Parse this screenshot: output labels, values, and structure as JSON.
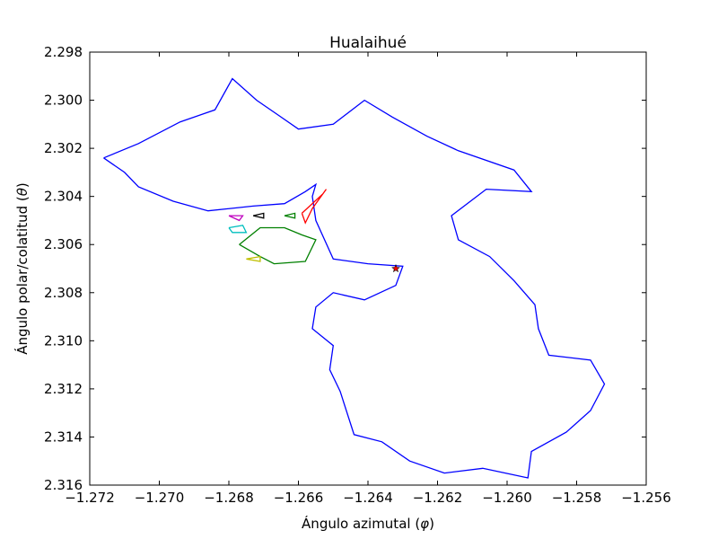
{
  "chart_data": {
    "type": "line",
    "title": "Hualaihué",
    "xlabel": "Ángulo azimutal (",
    "xlabel_symbol": "φ",
    "ylabel": "Ángulo polar/colatitud (",
    "ylabel_symbol": "θ",
    "xlim": [
      -1.272,
      -1.256
    ],
    "ylim": [
      2.298,
      2.316
    ],
    "y_inverted": true,
    "xticks": [
      -1.272,
      -1.27,
      -1.268,
      -1.266,
      -1.264,
      -1.262,
      -1.26,
      -1.258,
      -1.256
    ],
    "yticks": [
      2.298,
      2.3,
      2.302,
      2.304,
      2.306,
      2.308,
      2.31,
      2.312,
      2.314,
      2.316
    ],
    "xtick_labels": [
      "−1.272",
      "−1.270",
      "−1.268",
      "−1.266",
      "−1.264",
      "−1.262",
      "−1.260",
      "−1.258",
      "−1.256"
    ],
    "ytick_labels": [
      "2.298",
      "2.300",
      "2.302",
      "2.304",
      "2.306",
      "2.308",
      "2.310",
      "2.312",
      "2.314",
      "2.316"
    ],
    "grid": false,
    "legend": "none",
    "series": [
      {
        "color": "#0000ff",
        "closed": true,
        "points": [
          [
            -1.2716,
            2.3024
          ],
          [
            -1.2706,
            2.3018
          ],
          [
            -1.2694,
            2.3009
          ],
          [
            -1.2684,
            2.3004
          ],
          [
            -1.2679,
            2.2991
          ],
          [
            -1.2672,
            2.3
          ],
          [
            -1.2666,
            2.3006
          ],
          [
            -1.266,
            2.3012
          ],
          [
            -1.265,
            2.301
          ],
          [
            -1.2641,
            2.3
          ],
          [
            -1.2633,
            2.3007
          ],
          [
            -1.2623,
            2.3015
          ],
          [
            -1.2614,
            2.3021
          ],
          [
            -1.2598,
            2.3029
          ],
          [
            -1.2593,
            2.3038
          ],
          [
            -1.2606,
            2.3037
          ],
          [
            -1.2616,
            2.3048
          ],
          [
            -1.2614,
            2.3058
          ],
          [
            -1.2605,
            2.3065
          ],
          [
            -1.2598,
            2.3075
          ],
          [
            -1.2592,
            2.3085
          ],
          [
            -1.2591,
            2.3095
          ],
          [
            -1.2588,
            2.3106
          ],
          [
            -1.2576,
            2.3108
          ],
          [
            -1.2572,
            2.3118
          ],
          [
            -1.2576,
            2.3129
          ],
          [
            -1.2583,
            2.3138
          ],
          [
            -1.2593,
            2.3146
          ],
          [
            -1.2594,
            2.3157
          ],
          [
            -1.2607,
            2.3153
          ],
          [
            -1.2618,
            2.3155
          ],
          [
            -1.2628,
            2.315
          ],
          [
            -1.2636,
            2.3142
          ],
          [
            -1.2644,
            2.3139
          ],
          [
            -1.2648,
            2.3121
          ],
          [
            -1.2651,
            2.3112
          ],
          [
            -1.265,
            2.3102
          ],
          [
            -1.2656,
            2.3095
          ],
          [
            -1.2655,
            2.3086
          ],
          [
            -1.265,
            2.308
          ],
          [
            -1.2641,
            2.3083
          ],
          [
            -1.2632,
            2.3077
          ],
          [
            -1.263,
            2.3069
          ],
          [
            -1.264,
            2.3068
          ],
          [
            -1.265,
            2.3066
          ],
          [
            -1.2655,
            2.305
          ],
          [
            -1.2656,
            2.304
          ],
          [
            -1.2655,
            2.3035
          ],
          [
            -1.2658,
            2.3038
          ],
          [
            -1.2664,
            2.3043
          ],
          [
            -1.2673,
            2.3044
          ],
          [
            -1.2686,
            2.3046
          ],
          [
            -1.2696,
            2.3042
          ],
          [
            -1.2706,
            2.3036
          ],
          [
            -1.271,
            2.303
          ],
          [
            -1.2716,
            2.3024
          ]
        ]
      },
      {
        "color": "#ff0000",
        "closed": true,
        "points": [
          [
            -1.2659,
            2.3047
          ],
          [
            -1.2653,
            2.3039
          ],
          [
            -1.2652,
            2.3037
          ],
          [
            -1.2656,
            2.3045
          ],
          [
            -1.2658,
            2.3051
          ],
          [
            -1.2659,
            2.3047
          ]
        ]
      },
      {
        "color": "#008000",
        "closed": true,
        "points": [
          [
            -1.2677,
            2.306
          ],
          [
            -1.2671,
            2.3053
          ],
          [
            -1.2664,
            2.3053
          ],
          [
            -1.2659,
            2.3056
          ],
          [
            -1.2655,
            2.3058
          ],
          [
            -1.2658,
            2.3067
          ],
          [
            -1.2667,
            2.3068
          ],
          [
            -1.2671,
            2.3065
          ],
          [
            -1.2677,
            2.306
          ]
        ]
      },
      {
        "color": "#00bfbf",
        "closed": true,
        "points": [
          [
            -1.268,
            2.3053
          ],
          [
            -1.2676,
            2.3052
          ],
          [
            -1.2675,
            2.3055
          ],
          [
            -1.2679,
            2.3055
          ],
          [
            -1.268,
            2.3053
          ]
        ]
      },
      {
        "color": "#bf00bf",
        "closed": true,
        "points": [
          [
            -1.268,
            2.3048
          ],
          [
            -1.2676,
            2.3048
          ],
          [
            -1.2677,
            2.305
          ],
          [
            -1.268,
            2.3048
          ]
        ]
      },
      {
        "color": "#bfbf00",
        "closed": true,
        "points": [
          [
            -1.2675,
            2.3066
          ],
          [
            -1.2671,
            2.3065
          ],
          [
            -1.2671,
            2.3067
          ],
          [
            -1.2675,
            2.3066
          ]
        ]
      },
      {
        "color": "#000000",
        "closed": true,
        "points": [
          [
            -1.2673,
            2.3048
          ],
          [
            -1.267,
            2.3047
          ],
          [
            -1.267,
            2.3049
          ],
          [
            -1.2673,
            2.3048
          ]
        ]
      },
      {
        "color": "#008000",
        "closed": true,
        "points": [
          [
            -1.2664,
            2.3048
          ],
          [
            -1.2661,
            2.3047
          ],
          [
            -1.2661,
            2.3049
          ],
          [
            -1.2664,
            2.3048
          ]
        ]
      }
    ],
    "marker": {
      "x": -1.2632,
      "y": 2.307,
      "symbol": "star",
      "color": "#ff0000"
    }
  }
}
